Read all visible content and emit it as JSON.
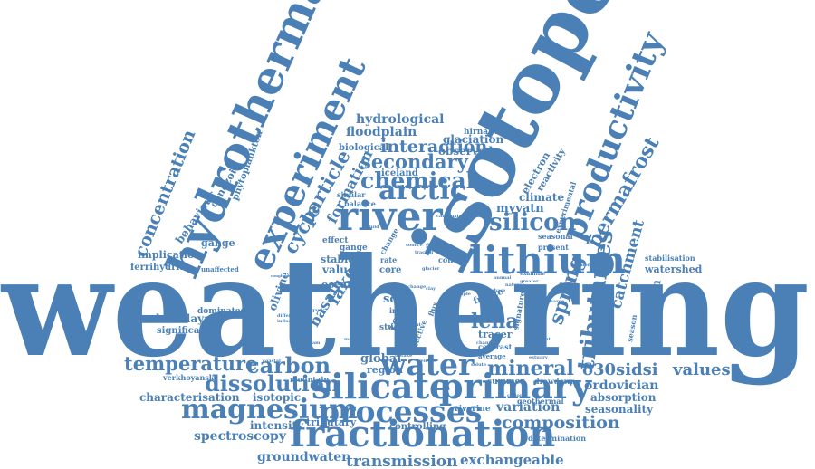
{
  "theme": {
    "word_color": "#4a80b5",
    "background": "#ffffff"
  },
  "words": {
    "weathering": "weathering",
    "isotope": "isotope",
    "hydrothermal": "hydrothermal",
    "experiment": "experiment",
    "river": "river",
    "lithium": "lithium",
    "silicate": "silicate",
    "primary": "primary",
    "fractionation": "fractionation",
    "processes": "processes",
    "magnesium": "magnesium",
    "water": "water",
    "productivity": "productivity",
    "arctic": "arctic",
    "chemical": "chemical",
    "silicon": "silicon",
    "carbon": "carbon",
    "temperature": "temperature",
    "dissolution": "dissolution",
    "composition": "composition",
    "tributaries": "tributaries",
    "permafrost": "permafrost",
    "lena": "lena",
    "mineral": "mineral",
    "secondary": "secondary",
    "interaction": "interaction",
    "hydrological": "hydrological",
    "floodplain": "floodplain",
    "concentration": "concentration",
    "particle": "particle",
    "cycle": "cycle",
    "formation": "formation",
    "spring": "spring",
    "catchment": "catchment",
    "d30si": "δ30si",
    "dsi": "dsi",
    "values": "values",
    "ordovician": "ordovician",
    "absorption": "absorption",
    "seasonality": "seasonality",
    "variation": "variation",
    "characterisation": "characterisation",
    "isotopic": "isotopic",
    "intensity": "intensity",
    "spectroscopy": "spectroscopy",
    "tributary": "tributary",
    "controlling": "controlling",
    "groundwater": "groundwater",
    "transmission": "transmission",
    "exchangeable": "exchangeable",
    "determination": "determination",
    "himalaya": "himalaya",
    "significant": "significant",
    "verkhoyansk": "verkhoyansk",
    "mountain": "mountain",
    "global": "global",
    "region": "region",
    "summer": "summer",
    "drawdown": "drawdown",
    "riverine": "riverine",
    "geothermal": "geothermal",
    "myvatn": "myvatn",
    "climate": "climate",
    "electron": "electron",
    "reactivity": "reactivity",
    "experimental": "experimental",
    "seasonal": "seasonal",
    "present": "present",
    "stabilisation": "stabilisation",
    "watershed": "watershed",
    "extinction": "extinction",
    "glaciation": "glaciation",
    "observed": "observed",
    "hirnantian": "hirnantian",
    "biological": "biological",
    "iceland": "iceland",
    "similar": "similar",
    "balance": "balance",
    "gange": "gange",
    "implication": "implication",
    "ferrihydrite": "ferrihydrite",
    "unaffected": "unaffected",
    "behaviour": "behaviour",
    "cenozoic": "cenozoic",
    "phytoplankton": "phytoplankton",
    "effect": "effect",
    "stable": "stable",
    "value": "value",
    "ocean": "ocean",
    "lake": "lake",
    "basalt": "basalt",
    "olivine": "olivine",
    "dominated": "dominated",
    "core": "core",
    "rate": "rate",
    "soil": "soil",
    "rock": "rock",
    "freeze": "freeze",
    "tracer": "tracer",
    "colloid": "colloid",
    "time": "time",
    "iron": "iron",
    "study": "study",
    "factor": "factor",
    "contrast": "contrast",
    "average": "average",
    "source": "source",
    "tracing": "tracing",
    "change": "change",
    "change2": "change",
    "annual": "annual",
    "natural": "natural",
    "examine": "examine",
    "greater": "greater",
    "signature": "signature",
    "channel": "channel",
    "glacier": "glacier",
    "carbonate": "carbonate",
    "estuary": "estuary",
    "discharge": "discharge",
    "sediment": "sediment",
    "flux": "flux",
    "surface": "surface",
    "reactive": "reactive",
    "conglomerate": "conglomerate",
    "different": "different",
    "influence": "influence",
    "marine": "marine",
    "budget": "budget",
    "input": "input",
    "release": "release",
    "organic": "organic",
    "solute": "solute",
    "trend": "trend",
    "low": "low",
    "high": "high",
    "range": "range",
    "nature": "nature",
    "record": "record",
    "basin": "basin",
    "uptake": "uptake",
    "clay": "clay",
    "fluid": "fluid",
    "phase": "phase",
    "model": "model",
    "matter": "matter",
    "heavy": "heavy",
    "light": "light",
    "mass": "mass",
    "depth": "depth",
    "early": "early",
    "late": "late",
    "result": "result",
    "major": "major",
    "state": "state",
    "event": "event",
    "area": "area",
    "form": "form",
    "ratio": "ratio",
    "sample": "sample",
    "season": "season",
    "stream": "stream",
    "coastal": "coastal",
    "yield": "yield",
    "local": "local",
    "cation": "cation",
    "anion": "anion"
  }
}
